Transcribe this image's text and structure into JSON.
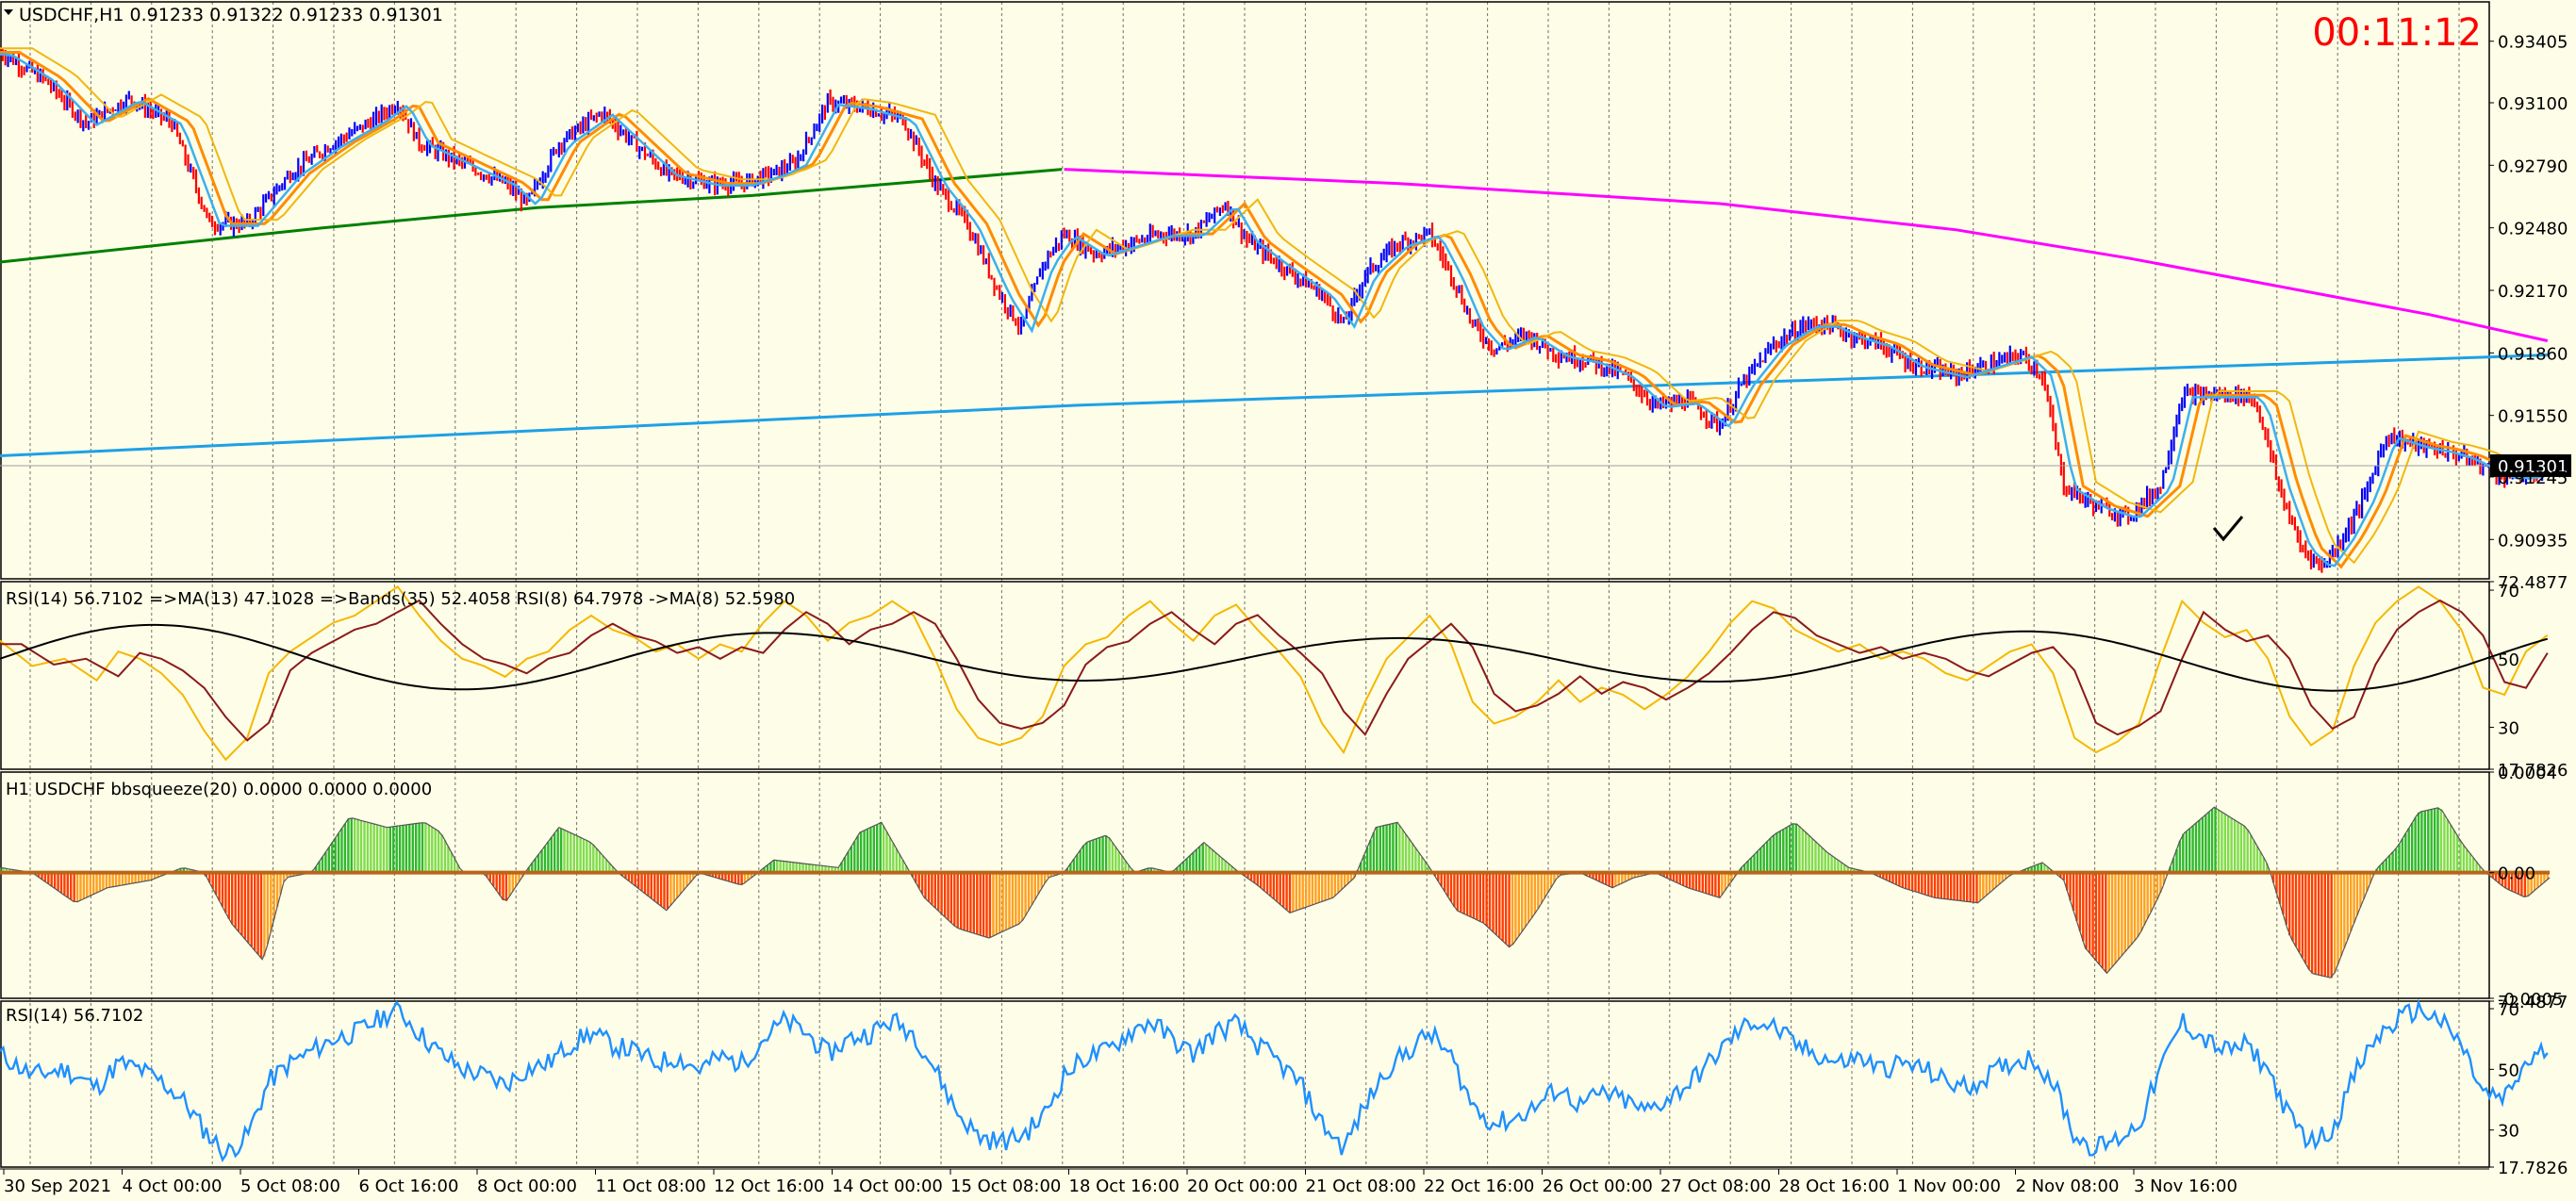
{
  "header": {
    "symbol_line": "USDCHF,H1  0.91233 0.91322 0.91233 0.91301",
    "timer": "00:11:12",
    "timer_color": "#ff0000"
  },
  "colors": {
    "background": "#fdfde8",
    "bull_bar": "#0000ff",
    "bear_bar": "#ff0000",
    "ma_slow": "#008000",
    "ma_long": "#ff00ff",
    "trend": "#1ea0e6",
    "orange": "#ff8c00",
    "rsi_line": "#1e90ff",
    "squeeze_up": "#32cd32",
    "squeeze_down": "#ff3c00"
  },
  "chart_data": [
    {
      "type": "candlestick",
      "pane": "price",
      "title": "USDCHF,H1",
      "ohlc_last": {
        "open": 0.91233,
        "high": 0.91322,
        "low": 0.91233,
        "close": 0.91301
      },
      "current_price_label": "0.91301",
      "y_ticks": [
        "0.93405",
        "0.93100",
        "0.92790",
        "0.92480",
        "0.92170",
        "0.91860",
        "0.91550",
        "0.91245",
        "0.90935"
      ],
      "ylim": [
        0.9074,
        0.936
      ],
      "x_ticks": [
        "30 Sep 2021",
        "4 Oct 00:00",
        "5 Oct 08:00",
        "6 Oct 16:00",
        "8 Oct 00:00",
        "11 Oct 08:00",
        "12 Oct 16:00",
        "14 Oct 00:00",
        "15 Oct 08:00",
        "18 Oct 16:00",
        "20 Oct 00:00",
        "21 Oct 08:00",
        "22 Oct 16:00",
        "26 Oct 00:00",
        "27 Oct 08:00",
        "28 Oct 16:00",
        "1 Nov 00:00",
        "2 Nov 08:00",
        "3 Nov 16:00"
      ],
      "close_path": [
        [
          0,
          0.9335
        ],
        [
          40,
          0.9322
        ],
        [
          80,
          0.93
        ],
        [
          120,
          0.9312
        ],
        [
          160,
          0.93
        ],
        [
          195,
          0.925
        ],
        [
          230,
          0.925
        ],
        [
          270,
          0.9275
        ],
        [
          310,
          0.929
        ],
        [
          350,
          0.9302
        ],
        [
          370,
          0.931
        ],
        [
          390,
          0.929
        ],
        [
          430,
          0.928
        ],
        [
          470,
          0.927
        ],
        [
          490,
          0.926
        ],
        [
          520,
          0.929
        ],
        [
          560,
          0.9305
        ],
        [
          590,
          0.929
        ],
        [
          620,
          0.9275
        ],
        [
          660,
          0.927
        ],
        [
          690,
          0.927
        ],
        [
          720,
          0.9275
        ],
        [
          740,
          0.928
        ],
        [
          770,
          0.931
        ],
        [
          800,
          0.9308
        ],
        [
          840,
          0.9302
        ],
        [
          870,
          0.927
        ],
        [
          900,
          0.925
        ],
        [
          930,
          0.9215
        ],
        [
          950,
          0.9198
        ],
        [
          970,
          0.923
        ],
        [
          990,
          0.9245
        ],
        [
          1020,
          0.9235
        ],
        [
          1050,
          0.924
        ],
        [
          1080,
          0.9245
        ],
        [
          1110,
          0.9245
        ],
        [
          1140,
          0.926
        ],
        [
          1160,
          0.9242
        ],
        [
          1190,
          0.923
        ],
        [
          1230,
          0.9215
        ],
        [
          1250,
          0.92
        ],
        [
          1270,
          0.9225
        ],
        [
          1300,
          0.924
        ],
        [
          1330,
          0.9245
        ],
        [
          1350,
          0.9225
        ],
        [
          1370,
          0.92
        ],
        [
          1390,
          0.9188
        ],
        [
          1420,
          0.9195
        ],
        [
          1450,
          0.9185
        ],
        [
          1480,
          0.9182
        ],
        [
          1510,
          0.9175
        ],
        [
          1540,
          0.916
        ],
        [
          1570,
          0.9162
        ],
        [
          1600,
          0.915
        ],
        [
          1620,
          0.917
        ],
        [
          1650,
          0.919
        ],
        [
          1680,
          0.92
        ],
        [
          1700,
          0.92
        ],
        [
          1720,
          0.9195
        ],
        [
          1750,
          0.919
        ],
        [
          1780,
          0.918
        ],
        [
          1820,
          0.9175
        ],
        [
          1850,
          0.918
        ],
        [
          1880,
          0.9185
        ],
        [
          1900,
          0.9175
        ],
        [
          1920,
          0.912
        ],
        [
          1950,
          0.911
        ],
        [
          1980,
          0.9105
        ],
        [
          2010,
          0.912
        ],
        [
          2030,
          0.9165
        ],
        [
          2060,
          0.9165
        ],
        [
          2090,
          0.9165
        ],
        [
          2100,
          0.916
        ],
        [
          2120,
          0.912
        ],
        [
          2140,
          0.909
        ],
        [
          2160,
          0.908
        ],
        [
          2180,
          0.9095
        ],
        [
          2200,
          0.9115
        ],
        [
          2220,
          0.9145
        ],
        [
          2250,
          0.914
        ],
        [
          2270,
          0.9138
        ],
        [
          2290,
          0.9135
        ],
        [
          2310,
          0.913
        ],
        [
          2330,
          0.9125
        ],
        [
          2350,
          0.9125
        ],
        [
          2370,
          0.9128
        ]
      ],
      "moving_averages": [
        {
          "color": "#008000",
          "points": [
            [
              0,
              0.9231
            ],
            [
              300,
              0.9248
            ],
            [
              500,
              0.9258
            ],
            [
              700,
              0.9264
            ],
            [
              988,
              0.9277
            ]
          ]
        },
        {
          "color": "#ff00ff",
          "points": [
            [
              990,
              0.9277
            ],
            [
              1300,
              0.927
            ],
            [
              1600,
              0.926
            ],
            [
              1820,
              0.9247
            ],
            [
              1980,
              0.9233
            ],
            [
              2140,
              0.9217
            ],
            [
              2260,
              0.9205
            ],
            [
              2370,
              0.9192
            ]
          ]
        },
        {
          "color": "#1ea0e6",
          "points": [
            [
              0,
              0.9135
            ],
            [
              1000,
              0.916
            ],
            [
              2372,
              0.9185
            ]
          ]
        }
      ]
    },
    {
      "type": "line",
      "pane": "rsi_bands",
      "title": "RSI(14) 56.7102  =>MA(13) 47.1028  =>Bands(35) 52.4058  RSI(8) 64.7978  ->MA(8) 52.5980",
      "y_ticks": [
        "72.4877",
        "70",
        "50",
        "30",
        "17.7826"
      ],
      "ylim": [
        17.7826,
        72.4877
      ]
    },
    {
      "type": "histogram",
      "pane": "bbsqueeze",
      "title": "H1 USDCHF bbsqueeze(20) 0.0000 0.0000 0.0000",
      "y_ticks": [
        "0.0004",
        "0.00",
        "-0.0005"
      ],
      "ylim": [
        -0.0005,
        0.0004
      ],
      "peaks": [
        [
          0,
          2e-05
        ],
        [
          30,
          0.0
        ],
        [
          70,
          -0.00012
        ],
        [
          100,
          -6e-05
        ],
        [
          140,
          -3e-05
        ],
        [
          170,
          2e-05
        ],
        [
          190,
          0.0
        ],
        [
          215,
          -0.0002
        ],
        [
          245,
          -0.00035
        ],
        [
          265,
          -2e-05
        ],
        [
          290,
          0.0
        ],
        [
          325,
          0.00022
        ],
        [
          360,
          0.00018
        ],
        [
          395,
          0.0002
        ],
        [
          410,
          0.00016
        ],
        [
          430,
          0.0
        ],
        [
          450,
          0.0
        ],
        [
          470,
          -0.00012
        ],
        [
          490,
          1e-05
        ],
        [
          520,
          0.00018
        ],
        [
          550,
          0.00012
        ],
        [
          575,
          0.0
        ],
        [
          620,
          -0.00015
        ],
        [
          650,
          0.0
        ],
        [
          690,
          -5e-05
        ],
        [
          720,
          5e-05
        ],
        [
          760,
          3e-05
        ],
        [
          780,
          2e-05
        ],
        [
          800,
          0.00016
        ],
        [
          820,
          0.0002
        ],
        [
          840,
          5e-05
        ],
        [
          860,
          -0.0001
        ],
        [
          890,
          -0.00022
        ],
        [
          920,
          -0.00026
        ],
        [
          950,
          -0.0002
        ],
        [
          975,
          -2e-05
        ],
        [
          990,
          0.0
        ],
        [
          1010,
          0.00012
        ],
        [
          1030,
          0.00015
        ],
        [
          1055,
          0.0
        ],
        [
          1070,
          2e-05
        ],
        [
          1090,
          0.0
        ],
        [
          1120,
          0.00012
        ],
        [
          1150,
          1e-05
        ],
        [
          1170,
          -5e-05
        ],
        [
          1200,
          -0.00016
        ],
        [
          1240,
          -0.0001
        ],
        [
          1260,
          -2e-05
        ],
        [
          1280,
          0.00018
        ],
        [
          1300,
          0.0002
        ],
        [
          1330,
          2e-05
        ],
        [
          1355,
          -0.00015
        ],
        [
          1380,
          -0.0002
        ],
        [
          1405,
          -0.0003
        ],
        [
          1430,
          -0.00015
        ],
        [
          1450,
          -1e-05
        ],
        [
          1470,
          0.0
        ],
        [
          1500,
          -6e-05
        ],
        [
          1520,
          -2e-05
        ],
        [
          1540,
          0.0
        ],
        [
          1570,
          -6e-05
        ],
        [
          1600,
          -0.0001
        ],
        [
          1620,
          2e-05
        ],
        [
          1650,
          0.00015
        ],
        [
          1670,
          0.0002
        ],
        [
          1700,
          8e-05
        ],
        [
          1720,
          2e-05
        ],
        [
          1740,
          0.0
        ],
        [
          1770,
          -6e-05
        ],
        [
          1800,
          -0.0001
        ],
        [
          1840,
          -0.00012
        ],
        [
          1870,
          -1e-05
        ],
        [
          1900,
          4e-05
        ],
        [
          1920,
          -3e-05
        ],
        [
          1940,
          -0.0003
        ],
        [
          1960,
          -0.0004
        ],
        [
          1990,
          -0.00025
        ],
        [
          2010,
          -8e-05
        ],
        [
          2030,
          0.00015
        ],
        [
          2060,
          0.00026
        ],
        [
          2090,
          0.00018
        ],
        [
          2110,
          3e-05
        ],
        [
          2130,
          -0.00025
        ],
        [
          2150,
          -0.0004
        ],
        [
          2170,
          -0.00042
        ],
        [
          2190,
          -0.0002
        ],
        [
          2210,
          1e-05
        ],
        [
          2230,
          0.0001
        ],
        [
          2250,
          0.00024
        ],
        [
          2270,
          0.00026
        ],
        [
          2290,
          0.00012
        ],
        [
          2310,
          1e-05
        ],
        [
          2330,
          -6e-05
        ],
        [
          2350,
          -0.0001
        ],
        [
          2372,
          -2e-05
        ]
      ]
    },
    {
      "type": "line",
      "pane": "rsi",
      "title": "RSI(14) 56.7102",
      "y_ticks": [
        "72.4877",
        "70",
        "50",
        "30",
        "17.7826"
      ],
      "ylim": [
        17.7826,
        72.4877
      ],
      "path": [
        [
          0,
          55
        ],
        [
          30,
          48
        ],
        [
          60,
          50
        ],
        [
          90,
          44
        ],
        [
          110,
          52
        ],
        [
          130,
          50
        ],
        [
          150,
          46
        ],
        [
          170,
          40
        ],
        [
          190,
          30
        ],
        [
          210,
          22
        ],
        [
          230,
          28
        ],
        [
          250,
          46
        ],
        [
          270,
          52
        ],
        [
          290,
          56
        ],
        [
          310,
          60
        ],
        [
          330,
          62
        ],
        [
          350,
          66
        ],
        [
          370,
          70
        ],
        [
          390,
          62
        ],
        [
          410,
          55
        ],
        [
          430,
          50
        ],
        [
          450,
          48
        ],
        [
          470,
          45
        ],
        [
          490,
          50
        ],
        [
          510,
          52
        ],
        [
          530,
          58
        ],
        [
          550,
          62
        ],
        [
          570,
          58
        ],
        [
          590,
          56
        ],
        [
          610,
          52
        ],
        [
          630,
          54
        ],
        [
          650,
          50
        ],
        [
          670,
          54
        ],
        [
          690,
          52
        ],
        [
          710,
          60
        ],
        [
          730,
          66
        ],
        [
          750,
          62
        ],
        [
          770,
          55
        ],
        [
          790,
          60
        ],
        [
          810,
          62
        ],
        [
          830,
          66
        ],
        [
          850,
          62
        ],
        [
          870,
          50
        ],
        [
          890,
          36
        ],
        [
          910,
          28
        ],
        [
          930,
          26
        ],
        [
          950,
          28
        ],
        [
          970,
          34
        ],
        [
          990,
          48
        ],
        [
          1010,
          54
        ],
        [
          1030,
          56
        ],
        [
          1050,
          62
        ],
        [
          1070,
          66
        ],
        [
          1090,
          60
        ],
        [
          1110,
          55
        ],
        [
          1130,
          62
        ],
        [
          1150,
          65
        ],
        [
          1170,
          58
        ],
        [
          1190,
          52
        ],
        [
          1210,
          45
        ],
        [
          1230,
          32
        ],
        [
          1250,
          24
        ],
        [
          1270,
          38
        ],
        [
          1290,
          50
        ],
        [
          1310,
          56
        ],
        [
          1330,
          62
        ],
        [
          1350,
          54
        ],
        [
          1370,
          38
        ],
        [
          1390,
          32
        ],
        [
          1410,
          34
        ],
        [
          1430,
          38
        ],
        [
          1450,
          44
        ],
        [
          1470,
          38
        ],
        [
          1490,
          42
        ],
        [
          1510,
          40
        ],
        [
          1530,
          36
        ],
        [
          1550,
          40
        ],
        [
          1570,
          45
        ],
        [
          1590,
          52
        ],
        [
          1610,
          60
        ],
        [
          1630,
          66
        ],
        [
          1650,
          64
        ],
        [
          1670,
          58
        ],
        [
          1690,
          55
        ],
        [
          1710,
          52
        ],
        [
          1730,
          54
        ],
        [
          1750,
          50
        ],
        [
          1770,
          52
        ],
        [
          1790,
          50
        ],
        [
          1810,
          46
        ],
        [
          1830,
          44
        ],
        [
          1850,
          48
        ],
        [
          1870,
          52
        ],
        [
          1890,
          54
        ],
        [
          1910,
          46
        ],
        [
          1930,
          28
        ],
        [
          1950,
          24
        ],
        [
          1970,
          27
        ],
        [
          1990,
          32
        ],
        [
          2010,
          50
        ],
        [
          2030,
          66
        ],
        [
          2050,
          60
        ],
        [
          2070,
          56
        ],
        [
          2090,
          58
        ],
        [
          2110,
          50
        ],
        [
          2130,
          34
        ],
        [
          2150,
          26
        ],
        [
          2170,
          30
        ],
        [
          2190,
          48
        ],
        [
          2210,
          60
        ],
        [
          2230,
          66
        ],
        [
          2250,
          70
        ],
        [
          2270,
          66
        ],
        [
          2290,
          58
        ],
        [
          2310,
          42
        ],
        [
          2330,
          40
        ],
        [
          2350,
          52
        ],
        [
          2372,
          57
        ]
      ]
    }
  ]
}
